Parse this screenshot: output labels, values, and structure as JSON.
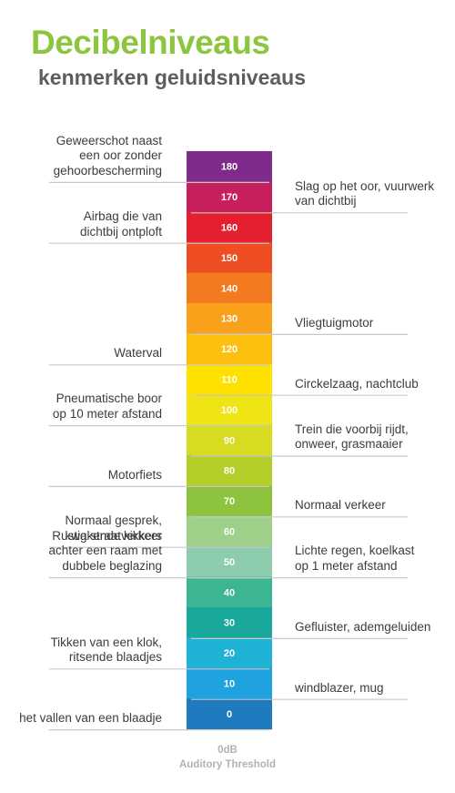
{
  "title": "Decibelniveaus",
  "subtitle": "kenmerken geluidsniveaus",
  "levels": [
    {
      "db": "180",
      "color": "#7f2b8c"
    },
    {
      "db": "170",
      "color": "#c8205e"
    },
    {
      "db": "160",
      "color": "#e4202e"
    },
    {
      "db": "150",
      "color": "#ef4d23"
    },
    {
      "db": "140",
      "color": "#f47a1f"
    },
    {
      "db": "130",
      "color": "#f9a11b"
    },
    {
      "db": "120",
      "color": "#fdc00f"
    },
    {
      "db": "110",
      "color": "#ffe100"
    },
    {
      "db": "100",
      "color": "#f1e414"
    },
    {
      "db": "90",
      "color": "#d8dc20"
    },
    {
      "db": "80",
      "color": "#b4cf2a"
    },
    {
      "db": "70",
      "color": "#8dc33d"
    },
    {
      "db": "60",
      "color": "#9fd08a"
    },
    {
      "db": "50",
      "color": "#8dccac"
    },
    {
      "db": "40",
      "color": "#3cb592"
    },
    {
      "db": "30",
      "color": "#19a99c"
    },
    {
      "db": "20",
      "color": "#1eb3d4"
    },
    {
      "db": "10",
      "color": "#1ea2e0"
    },
    {
      "db": "0",
      "color": "#1f7bbf"
    }
  ],
  "left_labels": [
    {
      "db": 180,
      "text": "Geweerschot naast\neen oor zonder\ngehoorbescherming"
    },
    {
      "db": 160,
      "text": "Airbag die van\ndichtbij ontploft"
    },
    {
      "db": 120,
      "text": "Waterval"
    },
    {
      "db": 100,
      "text": "Pneumatische boor\nop 10 meter afstand"
    },
    {
      "db": 80,
      "text": "Motorfiets"
    },
    {
      "db": 60,
      "text": "Normaal gesprek,\nkwakende kikkers"
    },
    {
      "db": 50,
      "text": "Rustig straatverkeer\nachter een raam met\ndubbele beglazing"
    },
    {
      "db": 20,
      "text": "Tikken van een klok,\nritsende blaadjes"
    },
    {
      "db": 0,
      "text": "het vallen van een blaadje"
    }
  ],
  "right_labels": [
    {
      "db": 170,
      "text": "Slag op het oor, vuurwerk\nvan dichtbij"
    },
    {
      "db": 130,
      "text": "Vliegtuigmotor"
    },
    {
      "db": 110,
      "text": "Circkelzaag, nachtclub"
    },
    {
      "db": 90,
      "text": "Trein die voorbij rijdt,\nonweer, grasmaaier"
    },
    {
      "db": 70,
      "text": "Normaal verkeer"
    },
    {
      "db": 50,
      "text": "Lichte regen, koelkast\nop 1 meter afstand"
    },
    {
      "db": 30,
      "text": "Gefluister, ademgeluiden"
    },
    {
      "db": 10,
      "text": "windblazer, mug"
    }
  ],
  "footer": {
    "line1": "0dB",
    "line2": "Auditory Threshold"
  }
}
